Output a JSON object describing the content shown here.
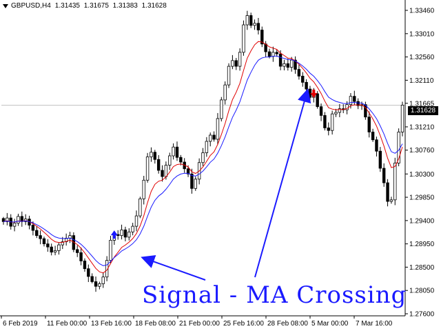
{
  "header": {
    "symbol": "GBPUSD,H4",
    "open": "1.31435",
    "high": "1.31675",
    "low": "1.31383",
    "close": "1.31628"
  },
  "current_price": "1.31628",
  "annotation": "Signal - MA Crossing",
  "colors": {
    "background": "#ffffff",
    "candles": "#000000",
    "ma_fast": "#e00000",
    "ma_slow": "#1a1aff",
    "buy_arrow": "#1a1aff",
    "sell_arrow": "#e00000",
    "annotation": "#1a1aff"
  },
  "icons": {
    "symbol_menu": "triangle-down-icon",
    "buy_signal": "arrow-up-icon",
    "sell_signal": "arrow-down-icon"
  },
  "chart_data": {
    "type": "candlestick",
    "y_ticks": [
      "1.33460",
      "1.33010",
      "1.32560",
      "1.32110",
      "1.31665",
      "1.31210",
      "1.30760",
      "1.30300",
      "1.29850",
      "1.29400",
      "1.28950",
      "1.28500",
      "1.28050",
      "1.27600"
    ],
    "x_ticks": [
      "6 Feb 2019",
      "11 Feb 00:00",
      "13 Feb 16:00",
      "18 Feb 08:00",
      "21 Feb 00:00",
      "25 Feb 16:00",
      "28 Feb 08:00",
      "5 Mar 00:00",
      "7 Mar 16:00"
    ],
    "ylim": [
      1.2756,
      1.3366
    ],
    "current_price": 1.31628,
    "close": [
      1.2938,
      1.2945,
      1.2929,
      1.2935,
      1.2948,
      1.2938,
      1.2943,
      1.2931,
      1.2921,
      1.2911,
      1.2905,
      1.2895,
      1.2889,
      1.2879,
      1.2882,
      1.2893,
      1.2899,
      1.2906,
      1.2911,
      1.2884,
      1.2878,
      1.2862,
      1.2847,
      1.2832,
      1.2822,
      1.2813,
      1.2818,
      1.2831,
      1.2863,
      1.2902,
      1.2913,
      1.2911,
      1.2922,
      1.2908,
      1.2918,
      1.2929,
      1.2949,
      1.2982,
      1.3018,
      1.3063,
      1.3072,
      1.3058,
      1.3037,
      1.3025,
      1.3047,
      1.3065,
      1.3082,
      1.3062,
      1.3053,
      1.304,
      1.303,
      1.3002,
      1.302,
      1.3052,
      1.3071,
      1.3093,
      1.3105,
      1.3097,
      1.3137,
      1.3173,
      1.3202,
      1.3238,
      1.3249,
      1.3238,
      1.3265,
      1.3318,
      1.3336,
      1.3317,
      1.3321,
      1.3308,
      1.3281,
      1.3266,
      1.3257,
      1.3265,
      1.3262,
      1.3238,
      1.3243,
      1.3236,
      1.325,
      1.3232,
      1.3219,
      1.3207,
      1.3194,
      1.3178,
      1.3185,
      1.316,
      1.3143,
      1.3119,
      1.3114,
      1.3146,
      1.3149,
      1.3156,
      1.3154,
      1.3164,
      1.318,
      1.317,
      1.3162,
      1.3164,
      1.314,
      1.3111,
      1.3096,
      1.3074,
      1.3041,
      1.3013,
      1.2977,
      1.298,
      1.3051,
      1.3111,
      1.3163
    ],
    "series": [
      {
        "name": "",
        "color": "#e00000",
        "period": 8
      },
      {
        "name": "",
        "color": "#1a1aff",
        "period": 13
      }
    ],
    "signals": [
      {
        "type": "buy",
        "bar": 30,
        "color": "#1a1aff"
      },
      {
        "type": "sell",
        "bar": 84,
        "color": "#e00000"
      }
    ]
  }
}
